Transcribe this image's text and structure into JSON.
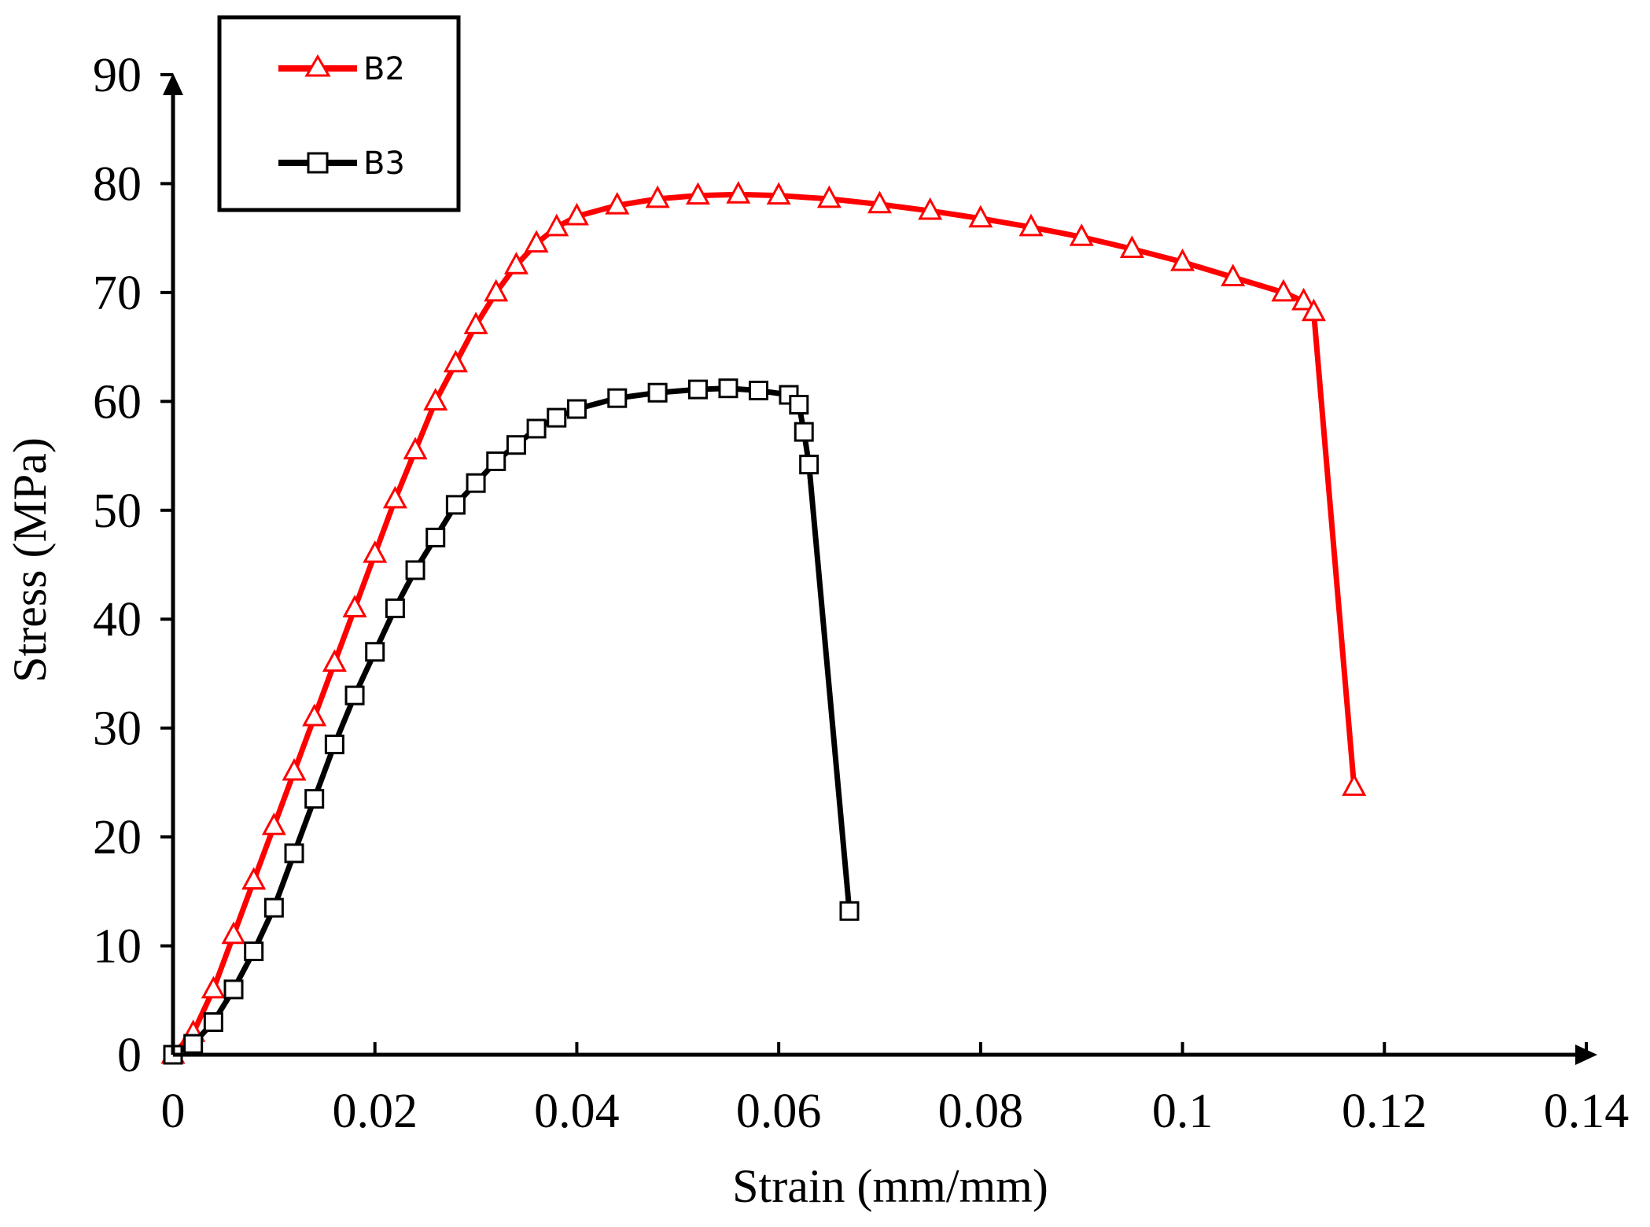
{
  "chart_data": {
    "type": "line",
    "xlabel": "Strain (mm/mm)",
    "ylabel": "Stress (MPa)",
    "xlim": [
      0,
      0.14
    ],
    "ylim": [
      0,
      90
    ],
    "x_ticks": [
      "0",
      "0.02",
      "0.04",
      "0.06",
      "0.08",
      "0.1",
      "0.12",
      "0.14"
    ],
    "y_ticks": [
      "0",
      "10",
      "20",
      "30",
      "40",
      "50",
      "60",
      "70",
      "80",
      "90"
    ],
    "legend_position": "top-left",
    "grid": false,
    "series": [
      {
        "name": "B2",
        "color": "#ff0000",
        "marker": "triangle",
        "points": [
          [
            0,
            0
          ],
          [
            0.002,
            2
          ],
          [
            0.004,
            6
          ],
          [
            0.006,
            11
          ],
          [
            0.008,
            16
          ],
          [
            0.01,
            21
          ],
          [
            0.012,
            26
          ],
          [
            0.014,
            31
          ],
          [
            0.016,
            36
          ],
          [
            0.018,
            41
          ],
          [
            0.02,
            46
          ],
          [
            0.022,
            51
          ],
          [
            0.024,
            55.5
          ],
          [
            0.026,
            60
          ],
          [
            0.028,
            63.5
          ],
          [
            0.03,
            67
          ],
          [
            0.032,
            70
          ],
          [
            0.034,
            72.5
          ],
          [
            0.036,
            74.5
          ],
          [
            0.038,
            76
          ],
          [
            0.04,
            77
          ],
          [
            0.044,
            78
          ],
          [
            0.048,
            78.6
          ],
          [
            0.052,
            78.9
          ],
          [
            0.056,
            79
          ],
          [
            0.06,
            78.9
          ],
          [
            0.065,
            78.6
          ],
          [
            0.07,
            78.1
          ],
          [
            0.075,
            77.5
          ],
          [
            0.08,
            76.8
          ],
          [
            0.085,
            76
          ],
          [
            0.09,
            75.1
          ],
          [
            0.095,
            74
          ],
          [
            0.1,
            72.8
          ],
          [
            0.105,
            71.4
          ],
          [
            0.11,
            70
          ],
          [
            0.112,
            69.2
          ],
          [
            0.113,
            68.2
          ],
          [
            0.117,
            24.6
          ]
        ]
      },
      {
        "name": "B3",
        "color": "#000000",
        "marker": "square",
        "points": [
          [
            0,
            0
          ],
          [
            0.002,
            1
          ],
          [
            0.004,
            3
          ],
          [
            0.006,
            6
          ],
          [
            0.008,
            9.5
          ],
          [
            0.01,
            13.5
          ],
          [
            0.012,
            18.5
          ],
          [
            0.014,
            23.5
          ],
          [
            0.016,
            28.5
          ],
          [
            0.018,
            33
          ],
          [
            0.02,
            37
          ],
          [
            0.022,
            41
          ],
          [
            0.024,
            44.5
          ],
          [
            0.026,
            47.5
          ],
          [
            0.028,
            50.5
          ],
          [
            0.03,
            52.5
          ],
          [
            0.032,
            54.5
          ],
          [
            0.034,
            56
          ],
          [
            0.036,
            57.5
          ],
          [
            0.038,
            58.5
          ],
          [
            0.04,
            59.3
          ],
          [
            0.044,
            60.3
          ],
          [
            0.048,
            60.8
          ],
          [
            0.052,
            61.1
          ],
          [
            0.055,
            61.2
          ],
          [
            0.058,
            61
          ],
          [
            0.061,
            60.6
          ],
          [
            0.062,
            59.7
          ],
          [
            0.0625,
            57.2
          ],
          [
            0.063,
            54.2
          ],
          [
            0.067,
            13.2
          ]
        ]
      }
    ]
  }
}
